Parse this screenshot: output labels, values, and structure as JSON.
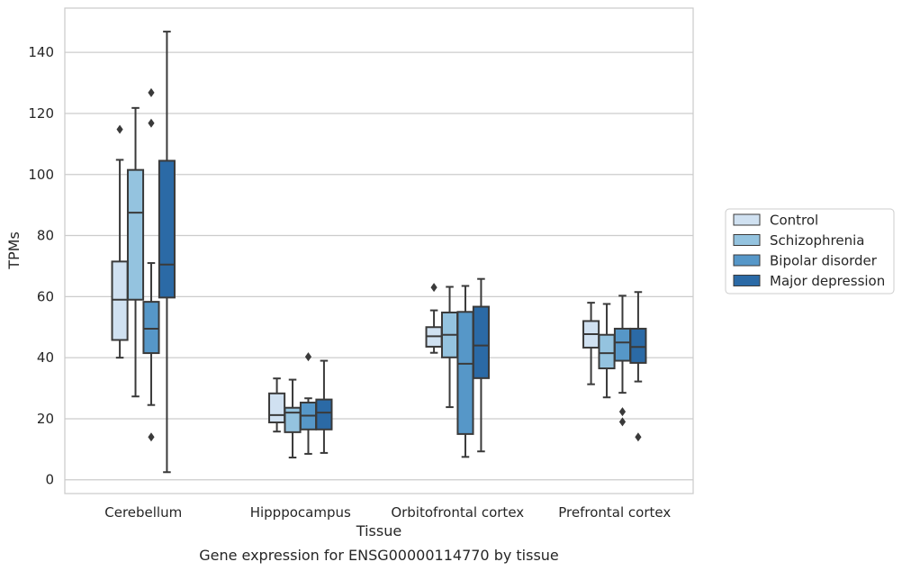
{
  "chart_data": {
    "type": "box",
    "title": "",
    "caption": "Gene expression for ENSG00000114770 by tissue",
    "xlabel": "Tissue",
    "ylabel": "TPMs",
    "ylim": [
      -4.5,
      154.5
    ],
    "yticks": [
      0,
      20,
      40,
      60,
      80,
      100,
      120,
      140
    ],
    "grid": true,
    "legend_placement": "center-right outside",
    "categories": [
      "Cerebellum",
      "Hipppocampus",
      "Orbitofrontal cortex",
      "Prefrontal cortex"
    ],
    "series": [
      {
        "name": "Control",
        "color": "#d0e1f1",
        "boxes": [
          {
            "whislo": 40.0,
            "q1": 45.8,
            "med": 59.0,
            "q3": 71.5,
            "whishi": 104.8,
            "fliers": [
              114.8
            ]
          },
          {
            "whislo": 15.8,
            "q1": 18.8,
            "med": 21.2,
            "q3": 28.3,
            "whishi": 33.2,
            "fliers": []
          },
          {
            "whislo": 41.6,
            "q1": 43.6,
            "med": 47.0,
            "q3": 50.0,
            "whishi": 55.5,
            "fliers": [
              63.0
            ]
          },
          {
            "whislo": 31.3,
            "q1": 43.3,
            "med": 47.7,
            "q3": 52.0,
            "whishi": 58.0,
            "fliers": []
          }
        ]
      },
      {
        "name": "Schizophrenia",
        "color": "#94c3df",
        "boxes": [
          {
            "whislo": 27.3,
            "q1": 59.0,
            "med": 87.5,
            "q3": 101.5,
            "whishi": 121.8,
            "fliers": []
          },
          {
            "whislo": 7.3,
            "q1": 15.6,
            "med": 22.0,
            "q3": 23.6,
            "whishi": 32.8,
            "fliers": []
          },
          {
            "whislo": 23.8,
            "q1": 40.1,
            "med": 47.5,
            "q3": 54.8,
            "whishi": 63.2,
            "fliers": []
          },
          {
            "whislo": 27.0,
            "q1": 36.5,
            "med": 41.5,
            "q3": 47.5,
            "whishi": 57.6,
            "fliers": []
          }
        ]
      },
      {
        "name": "Bipolar disorder",
        "color": "#5697c8",
        "boxes": [
          {
            "whislo": 24.5,
            "q1": 41.5,
            "med": 49.5,
            "q3": 58.3,
            "whishi": 71.0,
            "fliers": [
              126.8,
              116.8,
              14.0
            ]
          },
          {
            "whislo": 8.5,
            "q1": 16.5,
            "med": 21.0,
            "q3": 25.3,
            "whishi": 26.7,
            "fliers": [
              40.3
            ]
          },
          {
            "whislo": 7.5,
            "q1": 15.0,
            "med": 38.0,
            "q3": 55.0,
            "whishi": 63.5,
            "fliers": []
          },
          {
            "whislo": 28.5,
            "q1": 39.0,
            "med": 45.0,
            "q3": 49.5,
            "whishi": 60.3,
            "fliers": [
              22.3,
              19.0
            ]
          }
        ]
      },
      {
        "name": "Major depression",
        "color": "#2b6aa6",
        "boxes": [
          {
            "whislo": 2.5,
            "q1": 59.7,
            "med": 70.5,
            "q3": 104.5,
            "whishi": 146.8,
            "fliers": []
          },
          {
            "whislo": 8.8,
            "q1": 16.5,
            "med": 22.0,
            "q3": 26.3,
            "whishi": 39.0,
            "fliers": []
          },
          {
            "whislo": 9.3,
            "q1": 33.3,
            "med": 44.0,
            "q3": 56.7,
            "whishi": 65.8,
            "fliers": []
          },
          {
            "whislo": 32.2,
            "q1": 38.3,
            "med": 43.5,
            "q3": 49.5,
            "whishi": 61.5,
            "fliers": [
              14.0
            ]
          }
        ]
      }
    ]
  }
}
